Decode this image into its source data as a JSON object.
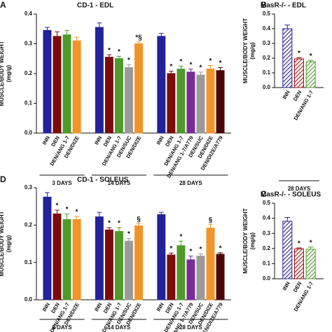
{
  "chart_data": [
    {
      "type": "bar",
      "panel": "A",
      "title": "CD-1 - EDL",
      "ylabel": "MUSCLE/BODY WEIGHT",
      "yunit": "(mg/g)",
      "pattern": "solid",
      "ylim": [
        0,
        0.4
      ],
      "yticks": [
        {
          "value": 0,
          "label": "0.0"
        },
        0.1,
        0.2,
        0.3,
        0.4
      ],
      "groups": [
        {
          "label": "3 DAYS",
          "categories": [
            "INN",
            "DEN",
            "DEN/ANG 1-7",
            "DEN/DIZE"
          ],
          "values": [
            0.345,
            0.325,
            0.33,
            0.31
          ],
          "errors": [
            0.01,
            0.015,
            0.015,
            0.012
          ],
          "colors": [
            "#22229a",
            "#7a0c0c",
            "#4e9a2a",
            "#f0952a"
          ],
          "markers": [
            null,
            null,
            null,
            null
          ]
        },
        {
          "label": "14 DAYS",
          "categories": [
            "INN",
            "DEN",
            "DEN/ANG 1-7",
            "DEN/SUC",
            "DEN/DIZE"
          ],
          "values": [
            0.355,
            0.255,
            0.25,
            0.22,
            0.3
          ],
          "errors": [
            0.015,
            0.008,
            0.008,
            0.01,
            0.006
          ],
          "colors": [
            "#22229a",
            "#7a0c0c",
            "#4e9a2a",
            "#9a9a9a",
            "#f0952a"
          ],
          "markers": [
            null,
            "*",
            "*",
            "*",
            "*§"
          ]
        },
        {
          "label": "28 DAYS",
          "categories": [
            "INN",
            "DEN",
            "DEN/ANG 1-7",
            "DEN/ANG 1-7/A779",
            "DEN/SUC",
            "DEN/DIZE",
            "DEN/DIZE/A779"
          ],
          "values": [
            0.325,
            0.2,
            0.215,
            0.205,
            0.195,
            0.215,
            0.21
          ],
          "errors": [
            0.01,
            0.008,
            0.01,
            0.01,
            0.01,
            0.012,
            0.01
          ],
          "colors": [
            "#22229a",
            "#7a0c0c",
            "#4e9a2a",
            "#7a2a9a",
            "#9a9a9a",
            "#f0952a",
            "#4a0808"
          ],
          "markers": [
            null,
            "*",
            "*",
            "*",
            "*",
            "*",
            "*"
          ]
        }
      ]
    },
    {
      "type": "bar",
      "panel": "B",
      "title": "MasR-/- - EDL",
      "ylabel": "MUSCLE/BODY WEIGHT",
      "yunit": "(mg/g)",
      "pattern": "hatch",
      "ylim": [
        0,
        0.5
      ],
      "yticks": [
        {
          "value": 0,
          "label": "0.0"
        },
        0.1,
        0.2,
        0.3,
        0.4,
        0.5
      ],
      "groups": [
        {
          "label": "28 DAYS",
          "categories": [
            "INN",
            "DEN",
            "DEN/ANG 1-7"
          ],
          "values": [
            0.4,
            0.195,
            0.175
          ],
          "errors": [
            0.025,
            0.008,
            0.01
          ],
          "colors": [
            "#22229a",
            "#a01010",
            "#4e9a2a"
          ],
          "markers": [
            null,
            "*",
            "*"
          ]
        }
      ]
    },
    {
      "type": "bar",
      "panel": "D",
      "title": "CD-1 - SOLEUS",
      "ylabel": "MUSCLE/BODY WEIGHT",
      "yunit": "(mg/g)",
      "pattern": "solid",
      "ylim": [
        0,
        0.3
      ],
      "yticks": [
        {
          "value": 0,
          "label": "0.0"
        },
        0.1,
        0.2,
        0.3
      ],
      "groups": [
        {
          "label": "3 DAYS",
          "categories": [
            "INN",
            "DEN",
            "DEN/ANG 1-7",
            "DEN/DIZE"
          ],
          "values": [
            0.275,
            0.23,
            0.215,
            0.215
          ],
          "errors": [
            0.012,
            0.01,
            0.015,
            0.008
          ],
          "colors": [
            "#22229a",
            "#7a0c0c",
            "#4e9a2a",
            "#f0952a"
          ],
          "markers": [
            null,
            "*",
            "*",
            "*"
          ]
        },
        {
          "label": "14 DAYS",
          "categories": [
            "INN",
            "DEN",
            "DEN/ANG 1-7",
            "DEN/SUC",
            "DEN/DIZE"
          ],
          "values": [
            0.222,
            0.187,
            0.183,
            0.157,
            0.198
          ],
          "errors": [
            0.012,
            0.006,
            0.01,
            0.007,
            0.006
          ],
          "colors": [
            "#22229a",
            "#7a0c0c",
            "#4e9a2a",
            "#9a9a9a",
            "#f0952a"
          ],
          "markers": [
            null,
            "*",
            "*",
            "*",
            "§"
          ]
        },
        {
          "label": "28 DAYS",
          "categories": [
            "INN",
            "DEN",
            "DEN/ANG 1-7",
            "DEN/ANG 1-7/A779",
            "DEN/SUC",
            "DEN/DIZE",
            "DEN/DIZE/A779"
          ],
          "values": [
            0.228,
            0.12,
            0.145,
            0.107,
            0.117,
            0.192,
            0.122
          ],
          "errors": [
            0.006,
            0.005,
            0.012,
            0.01,
            0.006,
            0.01,
            0.004
          ],
          "colors": [
            "#22229a",
            "#7a0c0c",
            "#4e9a2a",
            "#7a2a9a",
            "#9a9a9a",
            "#f0952a",
            "#4a0808"
          ],
          "markers": [
            null,
            "*",
            "*",
            "*",
            "*",
            "§",
            "*"
          ]
        }
      ]
    },
    {
      "type": "bar",
      "panel": "C",
      "title": "MasR-/- - SOLEUS",
      "ylabel": "MUSCLE/BODY WEIGHT",
      "yunit": "(mg/g)",
      "pattern": "hatch",
      "ylim": [
        0,
        0.5
      ],
      "yticks": [
        {
          "value": 0,
          "label": "0.0"
        },
        0.1,
        0.2,
        0.3,
        0.4,
        0.5
      ],
      "groups": [
        {
          "categories": [
            "INN",
            "DEN",
            "DEN/ANG 1-7"
          ],
          "values": [
            0.38,
            0.198,
            0.195
          ],
          "errors": [
            0.025,
            0.006,
            0.015
          ],
          "colors": [
            "#22229a",
            "#a01010",
            "#4e9a2a"
          ],
          "markers": [
            null,
            "*",
            "*"
          ]
        }
      ]
    }
  ]
}
